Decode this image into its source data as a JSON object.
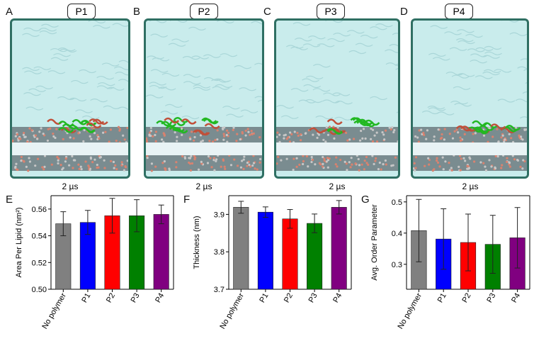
{
  "snapshots": [
    {
      "letter": "A",
      "label": "P1",
      "time": "2 µs"
    },
    {
      "letter": "B",
      "label": "P2",
      "time": "2 µs"
    },
    {
      "letter": "C",
      "label": "P3",
      "time": "2 µs"
    },
    {
      "letter": "D",
      "label": "P4",
      "time": "2 µs"
    }
  ],
  "colors": {
    "No polymer": "#808080",
    "P1": "#0000ff",
    "P2": "#ff0000",
    "P3": "#008000",
    "P4": "#800080"
  },
  "chart_data": [
    {
      "panel": "E",
      "type": "bar",
      "categories": [
        "No polymer",
        "P1",
        "P2",
        "P3",
        "P4"
      ],
      "values": [
        0.549,
        0.55,
        0.555,
        0.555,
        0.556
      ],
      "errors": [
        0.009,
        0.009,
        0.013,
        0.012,
        0.007
      ],
      "ylabel": "Area Per Lipid (nm²)",
      "ylim": [
        0.5,
        0.57
      ],
      "yticks": [
        "0.50",
        "0.52",
        "0.54",
        "0.56"
      ]
    },
    {
      "panel": "F",
      "type": "bar",
      "categories": [
        "No polymer",
        "P1",
        "P2",
        "P3",
        "P4"
      ],
      "values": [
        3.919,
        3.906,
        3.888,
        3.876,
        3.919
      ],
      "errors": [
        0.016,
        0.014,
        0.025,
        0.025,
        0.018
      ],
      "ylabel": "Thickness (nm)",
      "ylim": [
        3.7,
        3.95
      ],
      "yticks": [
        "3.7",
        "3.8",
        "3.9"
      ]
    },
    {
      "panel": "G",
      "type": "bar",
      "categories": [
        "No polymer",
        "P1",
        "P2",
        "P3",
        "P4"
      ],
      "values": [
        0.408,
        0.381,
        0.37,
        0.364,
        0.385
      ],
      "errors": [
        0.1,
        0.097,
        0.091,
        0.093,
        0.097
      ],
      "ylabel": "Avg. Order Parameter",
      "ylim": [
        0.22,
        0.52
      ],
      "yticks": [
        "0.3",
        "0.4",
        "0.5"
      ]
    }
  ]
}
